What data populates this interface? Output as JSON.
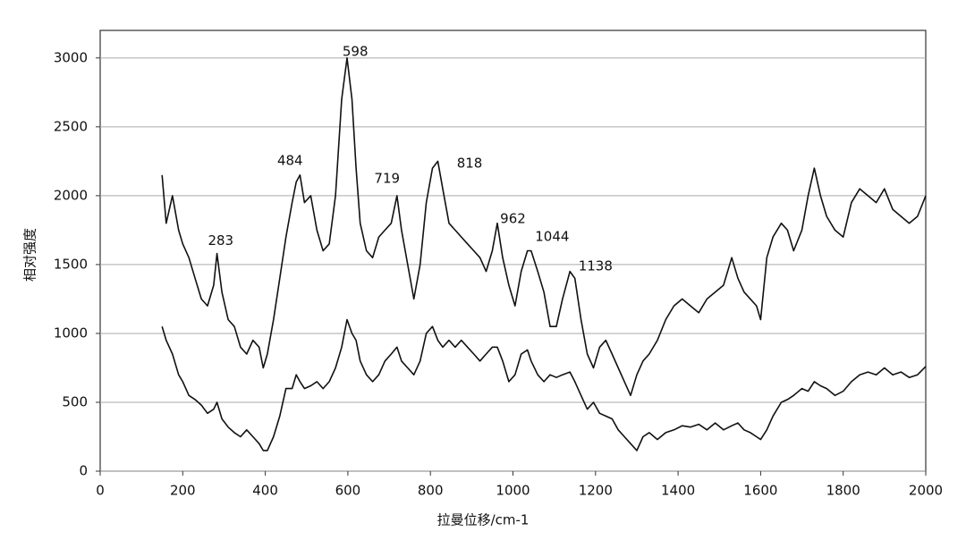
{
  "chart_data": {
    "type": "line",
    "x_label": "拉曼位移/cm-1",
    "y_label": "相对强度",
    "xlim": [
      0,
      2000
    ],
    "ylim": [
      0,
      3200
    ],
    "xticks": [
      0,
      200,
      400,
      600,
      800,
      1000,
      1200,
      1400,
      1600,
      1800,
      2000
    ],
    "yticks": [
      0,
      500,
      1000,
      1500,
      2000,
      2500,
      3000
    ],
    "grid": true,
    "x": [
      150,
      160,
      175,
      190,
      200,
      215,
      230,
      245,
      260,
      275,
      283,
      295,
      310,
      325,
      340,
      355,
      370,
      385,
      395,
      405,
      420,
      435,
      450,
      465,
      475,
      484,
      495,
      510,
      525,
      540,
      555,
      570,
      585,
      598,
      610,
      620,
      630,
      645,
      660,
      675,
      690,
      705,
      719,
      730,
      745,
      760,
      775,
      790,
      805,
      818,
      830,
      845,
      860,
      875,
      890,
      905,
      920,
      935,
      950,
      962,
      975,
      990,
      1005,
      1020,
      1035,
      1044,
      1060,
      1075,
      1090,
      1105,
      1120,
      1138,
      1150,
      1165,
      1180,
      1195,
      1210,
      1225,
      1240,
      1255,
      1270,
      1285,
      1300,
      1315,
      1330,
      1350,
      1370,
      1390,
      1410,
      1430,
      1450,
      1470,
      1490,
      1510,
      1530,
      1545,
      1560,
      1575,
      1590,
      1600,
      1615,
      1630,
      1650,
      1665,
      1680,
      1700,
      1715,
      1730,
      1745,
      1760,
      1780,
      1800,
      1820,
      1840,
      1860,
      1880,
      1900,
      1920,
      1940,
      1960,
      1980,
      2000
    ],
    "series": [
      {
        "color": "#111111",
        "values": [
          2150,
          1800,
          2000,
          1750,
          1650,
          1550,
          1400,
          1250,
          1200,
          1350,
          1580,
          1300,
          1100,
          1050,
          900,
          850,
          950,
          900,
          750,
          850,
          1100,
          1400,
          1700,
          1950,
          2100,
          2150,
          1950,
          2000,
          1750,
          1600,
          1650,
          2000,
          2700,
          3000,
          2700,
          2200,
          1800,
          1600,
          1550,
          1700,
          1750,
          1800,
          2000,
          1750,
          1500,
          1250,
          1500,
          1950,
          2200,
          2250,
          2050,
          1800,
          1750,
          1700,
          1650,
          1600,
          1550,
          1450,
          1600,
          1800,
          1550,
          1350,
          1200,
          1450,
          1600,
          1600,
          1450,
          1300,
          1050,
          1050,
          1250,
          1450,
          1400,
          1100,
          850,
          750,
          900,
          950,
          850,
          750,
          650,
          550,
          700,
          800,
          850,
          950,
          1100,
          1200,
          1250,
          1200,
          1150,
          1250,
          1300,
          1350,
          1550,
          1400,
          1300,
          1250,
          1200,
          1100,
          1550,
          1700,
          1800,
          1750,
          1600,
          1750,
          2000,
          2200,
          2000,
          1850,
          1750,
          1700,
          1950,
          2050,
          2000,
          1950,
          2050,
          1900,
          1850,
          1800,
          1850,
          2000
        ]
      },
      {
        "color": "#111111",
        "values": [
          1050,
          950,
          850,
          700,
          650,
          550,
          520,
          480,
          420,
          450,
          500,
          380,
          320,
          280,
          250,
          300,
          250,
          200,
          150,
          150,
          250,
          400,
          600,
          600,
          700,
          650,
          600,
          620,
          650,
          600,
          650,
          750,
          900,
          1100,
          1000,
          950,
          800,
          700,
          650,
          700,
          800,
          850,
          900,
          800,
          750,
          700,
          800,
          1000,
          1050,
          950,
          900,
          950,
          900,
          950,
          900,
          850,
          800,
          850,
          900,
          900,
          800,
          650,
          700,
          850,
          880,
          800,
          700,
          650,
          700,
          680,
          700,
          720,
          650,
          550,
          450,
          500,
          420,
          400,
          380,
          300,
          250,
          200,
          150,
          250,
          280,
          230,
          280,
          300,
          330,
          320,
          340,
          300,
          350,
          300,
          330,
          350,
          300,
          280,
          250,
          230,
          300,
          400,
          500,
          520,
          550,
          600,
          580,
          650,
          620,
          600,
          550,
          580,
          650,
          700,
          720,
          700,
          750,
          700,
          720,
          680,
          700,
          760
        ]
      }
    ],
    "annotations": [
      {
        "text": "283",
        "x": 292,
        "y": 1670
      },
      {
        "text": "484",
        "x": 460,
        "y": 2253
      },
      {
        "text": "598",
        "x": 618,
        "y": 3045
      },
      {
        "text": "719",
        "x": 695,
        "y": 2123
      },
      {
        "text": "818",
        "x": 895,
        "y": 2234
      },
      {
        "text": "962",
        "x": 1000,
        "y": 1831
      },
      {
        "text": "1044",
        "x": 1095,
        "y": 1701
      },
      {
        "text": "1138",
        "x": 1200,
        "y": 1487
      }
    ]
  }
}
